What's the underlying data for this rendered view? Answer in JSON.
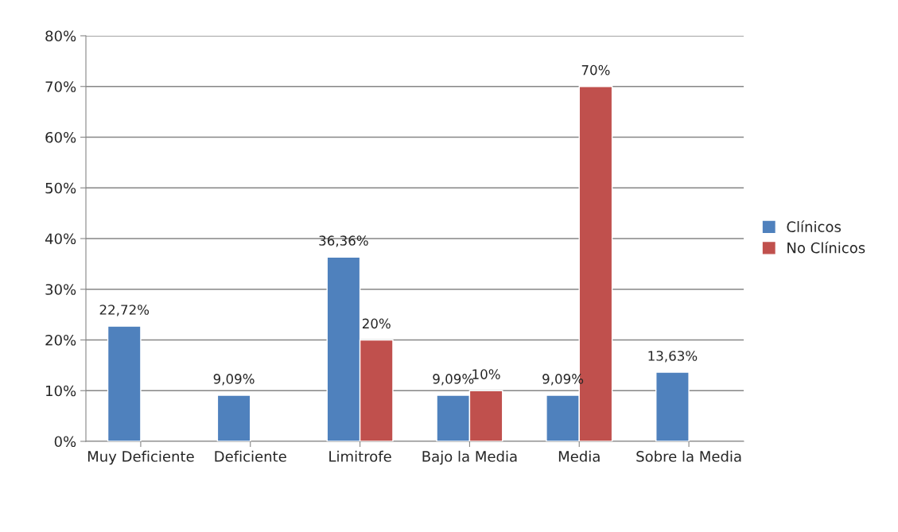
{
  "chart_data": {
    "type": "bar",
    "categories": [
      "Muy Deficiente",
      "Deficiente",
      "Limitrofe",
      "Bajo la Media",
      "Media",
      "Sobre la Media"
    ],
    "series": [
      {
        "name": "Clínicos",
        "color": "#4f81bd",
        "values": [
          22.72,
          9.09,
          36.36,
          9.09,
          9.09,
          13.63
        ],
        "value_labels": [
          "22,72%",
          "9,09%",
          "36,36%",
          "9,09%",
          "9,09%",
          "13,63%"
        ]
      },
      {
        "name": "No Clínicos",
        "color": "#c0504d",
        "values": [
          null,
          null,
          20,
          10,
          70,
          null
        ],
        "value_labels": [
          null,
          null,
          "20%",
          "10%",
          "70%",
          null
        ]
      }
    ],
    "ylim": [
      0,
      80
    ],
    "yticks": [
      {
        "value": 0,
        "label": "0%"
      },
      {
        "value": 10,
        "label": "10%"
      },
      {
        "value": 20,
        "label": "20%"
      },
      {
        "value": 30,
        "label": "30%"
      },
      {
        "value": 40,
        "label": "40%"
      },
      {
        "value": 50,
        "label": "50%"
      },
      {
        "value": 60,
        "label": "60%"
      },
      {
        "value": 70,
        "label": "70%"
      },
      {
        "value": 80,
        "label": "80%"
      }
    ],
    "grid": "y",
    "legend": "right"
  }
}
